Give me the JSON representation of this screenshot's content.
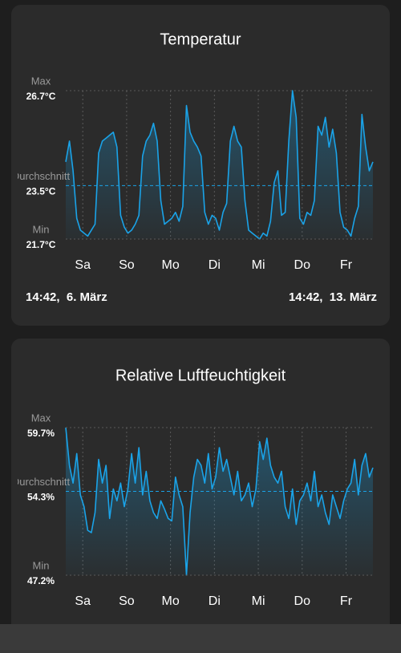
{
  "chart_data": [
    {
      "type": "line",
      "title": "Temperatur",
      "color": "#1aa3e8",
      "xlim": [
        0,
        168
      ],
      "ylim": [
        21.7,
        26.7
      ],
      "xticks": [
        {
          "value": 9.3,
          "label": "Sa"
        },
        {
          "value": 33.3,
          "label": "So"
        },
        {
          "value": 57.3,
          "label": "Mo"
        },
        {
          "value": 81.3,
          "label": "Di"
        },
        {
          "value": 105.3,
          "label": "Mi"
        },
        {
          "value": 129.3,
          "label": "Do"
        },
        {
          "value": 153.3,
          "label": "Fr"
        }
      ],
      "reference_lines": [
        {
          "name": "Max",
          "value": 26.7,
          "label": "26.7°C"
        },
        {
          "name": "Durchschnitt",
          "value": 23.5,
          "label": "23.5°C"
        },
        {
          "name": "Min",
          "value": 21.7,
          "label": "21.7°C"
        }
      ],
      "start_label": "14:42,  6. März",
      "end_label": "14:42,  13. März",
      "values": [
        24.3,
        25.0,
        24.0,
        22.4,
        22.0,
        21.9,
        21.8,
        22.0,
        22.2,
        24.6,
        25.0,
        25.1,
        25.2,
        25.3,
        24.8,
        22.5,
        22.1,
        21.9,
        22.0,
        22.2,
        22.5,
        24.5,
        25.0,
        25.2,
        25.6,
        25.0,
        23.0,
        22.2,
        22.3,
        22.4,
        22.6,
        22.3,
        22.8,
        26.2,
        25.3,
        25.0,
        24.8,
        24.5,
        22.6,
        22.2,
        22.5,
        22.4,
        22.0,
        22.6,
        22.9,
        25.0,
        25.5,
        25.0,
        24.8,
        23.0,
        22.0,
        21.9,
        21.8,
        21.7,
        21.9,
        21.8,
        22.3,
        23.6,
        24.0,
        22.5,
        22.6,
        25.0,
        26.7,
        25.8,
        22.4,
        22.2,
        22.6,
        22.5,
        23.0,
        25.5,
        25.2,
        25.8,
        24.8,
        25.4,
        24.6,
        22.6,
        22.1,
        22.0,
        21.8,
        22.4,
        22.8,
        25.9,
        24.8,
        24.0,
        24.3
      ]
    },
    {
      "type": "line",
      "title": "Relative Luftfeuchtigkeit",
      "color": "#1aa3e8",
      "xlim": [
        0,
        168
      ],
      "ylim": [
        47.2,
        59.7
      ],
      "xticks": [
        {
          "value": 9.3,
          "label": "Sa"
        },
        {
          "value": 33.3,
          "label": "So"
        },
        {
          "value": 57.3,
          "label": "Mo"
        },
        {
          "value": 81.3,
          "label": "Di"
        },
        {
          "value": 105.3,
          "label": "Mi"
        },
        {
          "value": 129.3,
          "label": "Do"
        },
        {
          "value": 153.3,
          "label": "Fr"
        }
      ],
      "reference_lines": [
        {
          "name": "Max",
          "value": 59.7,
          "label": "59.7%"
        },
        {
          "name": "Durchschnitt",
          "value": 54.3,
          "label": "54.3%"
        },
        {
          "name": "Min",
          "value": 47.2,
          "label": "47.2%"
        }
      ],
      "values": [
        59.7,
        56.5,
        55.0,
        57.5,
        54.0,
        53.0,
        51.0,
        50.8,
        52.5,
        57.0,
        55.0,
        56.5,
        52.0,
        54.5,
        53.5,
        55.0,
        53.0,
        54.5,
        57.5,
        55.0,
        58.0,
        54.0,
        56.0,
        53.5,
        52.5,
        52.0,
        53.5,
        52.8,
        52.0,
        51.8,
        55.5,
        54.0,
        53.0,
        47.2,
        52.5,
        55.5,
        57.0,
        56.5,
        55.0,
        57.5,
        54.5,
        55.5,
        58.0,
        56.0,
        57.0,
        55.5,
        54.0,
        56.0,
        53.5,
        54.0,
        55.0,
        53.0,
        54.5,
        58.5,
        57.0,
        58.8,
        56.5,
        55.5,
        55.0,
        56.0,
        53.0,
        52.0,
        54.5,
        51.5,
        53.5,
        54.0,
        55.0,
        53.5,
        56.0,
        53.0,
        54.0,
        52.5,
        51.5,
        54.0,
        53.0,
        52.0,
        53.5,
        54.5,
        55.0,
        57.0,
        54.0,
        56.5,
        57.5,
        55.5,
        56.3
      ]
    }
  ]
}
